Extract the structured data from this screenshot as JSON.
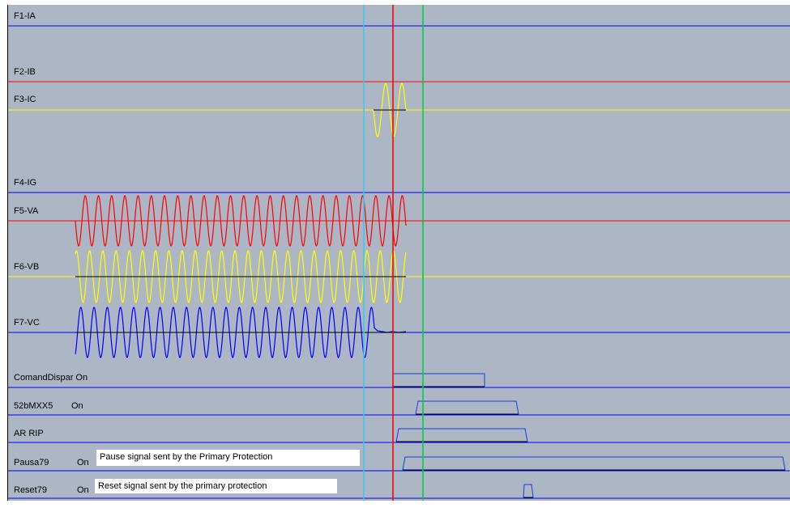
{
  "channels": {
    "f1_label": "F1-IA",
    "f2_label": "F2-IB",
    "f3_label": "F3-IC",
    "f4_label": "F4-IG",
    "f5_label": "F5-VA",
    "f6_label": "F6-VB",
    "f7_label": "F7-VC"
  },
  "digital": {
    "comand_label": "ComandDispar On",
    "b52_label": "52bMXX5",
    "b52_state": "On",
    "arrip_label": "AR RIP",
    "pausa_label": "Pausa79",
    "pausa_state": "On",
    "pausa_note": "Pause signal sent by the Primary Protection",
    "reset_label": "Reset79",
    "reset_state": "On",
    "reset_note": "Reset signal sent by the primary protection"
  },
  "colors": {
    "plot_background": "#adb6c4",
    "baseline_blue": "#0000ff",
    "phase_red": "#ff0000",
    "phase_yellow": "#ffff00",
    "phase_blue": "#0000ff",
    "cursor_cyan": "#33ccee",
    "cursor_red": "#ee0000",
    "cursor_green": "#00cc33",
    "digital_trace": "#1a3fd6"
  }
}
